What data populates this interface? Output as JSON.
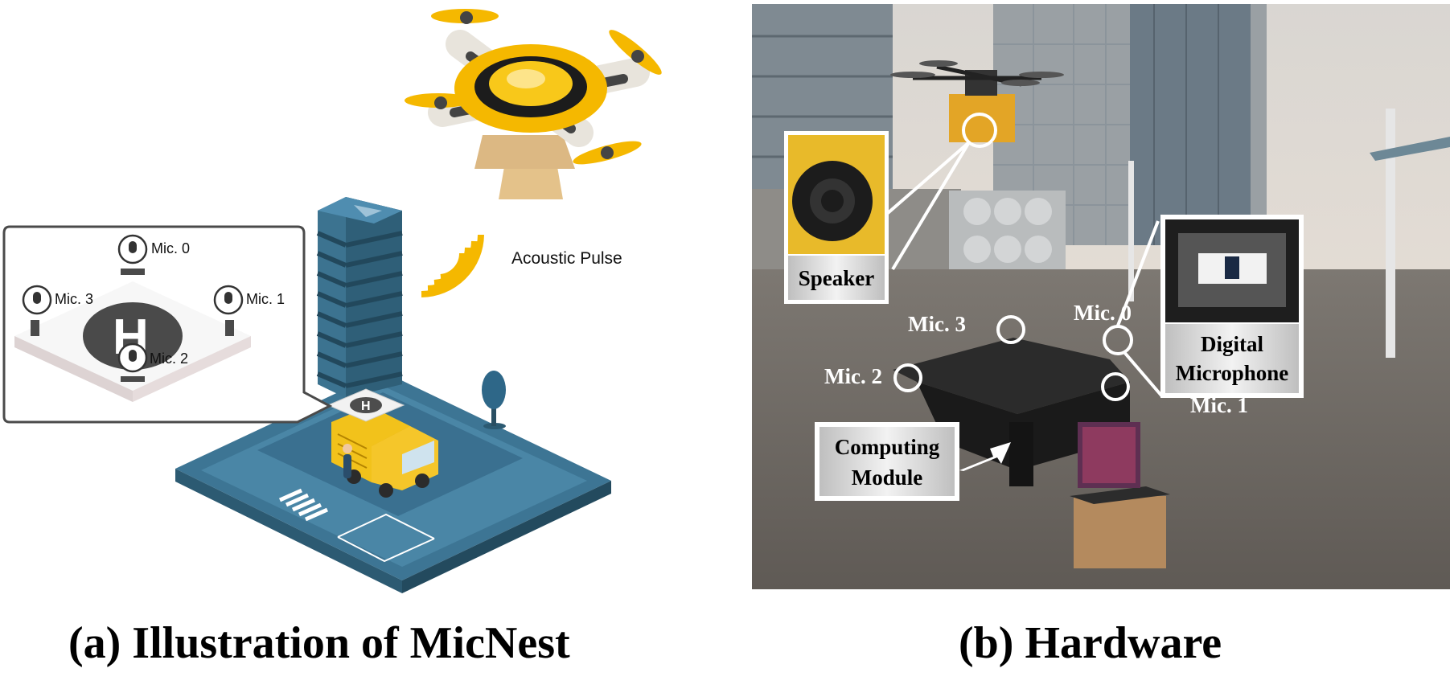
{
  "panel_a": {
    "caption": "(a) Illustration of MicNest",
    "acoustic_label": "Acoustic Pulse",
    "mics": [
      "Mic. 0",
      "Mic. 1",
      "Mic. 2",
      "Mic. 3"
    ],
    "pad_letter": "H",
    "colors": {
      "drone_yellow": "#f5b800",
      "building": "#3c7390",
      "ground": "#4a86a6",
      "truck": "#f2c21b"
    }
  },
  "panel_b": {
    "caption": "(b) Hardware",
    "labels": {
      "speaker": "Speaker",
      "digital_microphone": [
        "Digital",
        "Microphone"
      ],
      "computing_module": [
        "Computing",
        "Module"
      ]
    },
    "mics": [
      "Mic. 0",
      "Mic. 1",
      "Mic. 2",
      "Mic. 3"
    ]
  }
}
